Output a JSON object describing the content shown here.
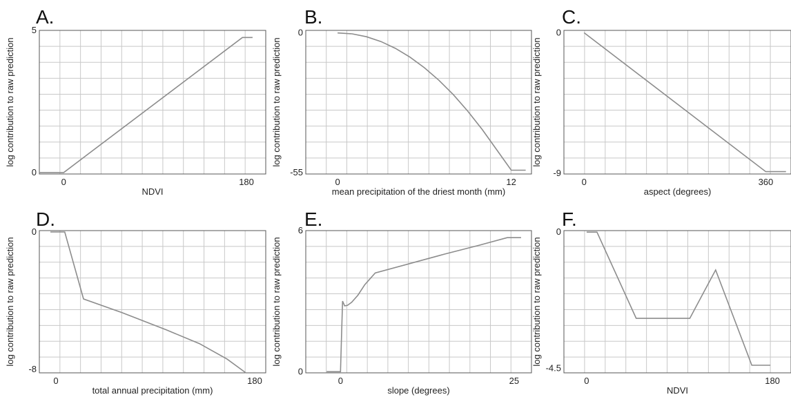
{
  "figure": {
    "accent_color": "#8c8c8c",
    "grid_color": "#c8c8c8"
  },
  "chart_data": [
    {
      "panel": "A.",
      "type": "line",
      "xlabel": "NDVI",
      "ylabel": "log contribution to raw prediction",
      "xticks": [
        0,
        180
      ],
      "yticks": [
        0,
        5
      ],
      "xlim": [
        -24,
        199
      ],
      "ylim": [
        -0.05,
        5
      ],
      "series": [
        {
          "x": [
            -24,
            0,
            176,
            186
          ],
          "y": [
            0,
            0,
            4.75,
            4.75
          ]
        }
      ],
      "grid": true
    },
    {
      "panel": "B.",
      "type": "line",
      "xlabel": "mean precipitation of the driest month (mm)",
      "ylabel": "log contribution to raw prediction",
      "xticks": [
        0,
        12
      ],
      "yticks": [
        0,
        -55
      ],
      "xlim": [
        -2.2,
        13.4
      ],
      "ylim": [
        -55.5,
        1
      ],
      "series": [
        {
          "x": [
            0,
            1,
            2,
            3,
            4,
            5,
            6,
            7,
            8,
            9,
            10,
            11,
            12,
            13
          ],
          "y": [
            0,
            -0.37,
            -1.5,
            -3.4,
            -6.1,
            -9.5,
            -13.7,
            -18.6,
            -24.3,
            -30.8,
            -38,
            -46,
            -54,
            -54
          ]
        }
      ],
      "grid": true
    },
    {
      "panel": "C.",
      "type": "line",
      "xlabel": "aspect (degrees)",
      "ylabel": "log contribution to raw prediction",
      "xticks": [
        0,
        360
      ],
      "yticks": [
        0,
        -9
      ],
      "xlim": [
        -40,
        410
      ],
      "ylim": [
        -9.05,
        0.15
      ],
      "series": [
        {
          "x": [
            0,
            360,
            400
          ],
          "y": [
            0,
            -8.9,
            -8.9
          ]
        }
      ],
      "grid": true
    },
    {
      "panel": "D.",
      "type": "line",
      "xlabel": "total annual precipitation (mm)",
      "ylabel": "log contribution to raw prediction",
      "xticks": [
        0,
        180
      ],
      "yticks": [
        0,
        -8
      ],
      "xlim": [
        -15,
        190
      ],
      "ylim": [
        -8.2,
        0.08
      ],
      "series": [
        {
          "x": [
            -5,
            8,
            25,
            60,
            100,
            130,
            155,
            172,
            180
          ],
          "y": [
            0,
            0,
            -3.9,
            -4.7,
            -5.7,
            -6.5,
            -7.4,
            -8.2,
            -8.2
          ]
        }
      ],
      "grid": true
    },
    {
      "panel": "E.",
      "type": "line",
      "xlabel": "slope (degrees)",
      "ylabel": "log contribution to raw prediction",
      "xticks": [
        0,
        25
      ],
      "yticks": [
        0,
        6
      ],
      "xlim": [
        -5,
        27.5
      ],
      "ylim": [
        -0.05,
        6
      ],
      "series": [
        {
          "x": [
            -2,
            0,
            0.3,
            0.6,
            1,
            1.6,
            2.5,
            3.5,
            5,
            10,
            15,
            20,
            24,
            26
          ],
          "y": [
            0,
            0,
            3,
            2.8,
            2.82,
            2.95,
            3.25,
            3.7,
            4.2,
            4.6,
            5,
            5.38,
            5.7,
            5.7
          ]
        }
      ],
      "grid": true
    },
    {
      "panel": "F.",
      "type": "line",
      "xlabel": "NDVI",
      "ylabel": "log contribution to raw prediction",
      "xticks": [
        0,
        180
      ],
      "yticks": [
        0,
        -4.5
      ],
      "xlim": [
        -22,
        198
      ],
      "ylim": [
        -4.65,
        0.05
      ],
      "series": [
        {
          "x": [
            0,
            10,
            48,
            100,
            125,
            160,
            178
          ],
          "y": [
            0,
            0,
            -2.85,
            -2.85,
            -1.25,
            -4.4,
            -4.4
          ]
        }
      ],
      "grid": true
    }
  ]
}
